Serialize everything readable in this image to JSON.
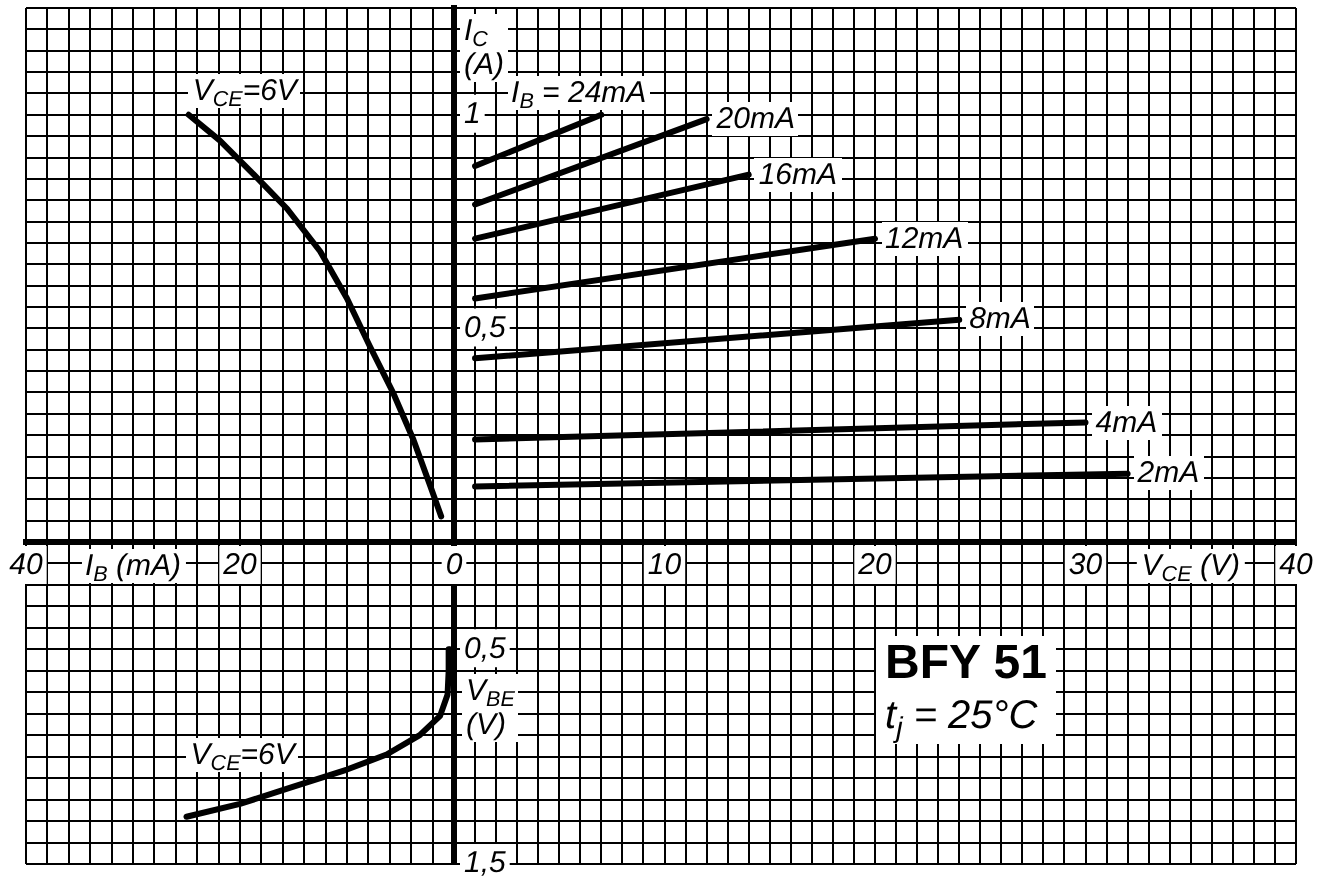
{
  "chart_data": [
    {
      "type": "line",
      "xlabel": "I$_{B}$ (mA)",
      "xlim": [
        40,
        0
      ],
      "xticks": [
        {
          "value": 2,
          "label": null
        },
        {
          "value": 4,
          "label": null
        },
        {
          "value": 6,
          "label": null
        },
        {
          "value": 8,
          "label": null
        },
        {
          "value": 10,
          "label": null
        },
        {
          "value": 12,
          "label": null
        },
        {
          "value": 14,
          "label": null
        },
        {
          "value": 16,
          "label": null
        },
        {
          "value": 18,
          "label": null
        },
        20,
        {
          "value": 22,
          "label": null
        },
        {
          "value": 24,
          "label": null
        },
        {
          "value": 26,
          "label": null
        },
        {
          "value": 28,
          "label": null
        },
        {
          "value": 30,
          "label": null
        },
        {
          "value": 32,
          "label": null
        },
        {
          "value": 34,
          "label": null
        },
        {
          "value": 36,
          "label": null
        },
        {
          "value": 38,
          "label": null
        },
        40
      ],
      "ylim": [
        0,
        1.25
      ],
      "yticks": [
        0.05,
        0.1,
        0.15,
        0.2,
        0.25,
        0.3,
        0.35,
        0.4,
        0.45,
        0.5,
        0.55,
        0.6,
        0.65,
        0.7,
        0.75,
        0.8,
        0.85,
        0.9,
        0.95,
        1,
        1.05,
        1.1,
        1.15,
        1.2,
        1.25
      ],
      "tick_labels": "x",
      "grid": true,
      "series": [
        {
          "name": "V$_{CE}$=6V",
          "color": "#000000",
          "x": [
            1.2,
            2.2,
            3.8,
            5.7,
            7.9,
            10,
            12.5,
            15.6,
            18.7,
            21.9,
            24.8
          ],
          "values": [
            0.06,
            0.13,
            0.24,
            0.35,
            0.46,
            0.57,
            0.68,
            0.78,
            0.86,
            0.94,
            1.0
          ]
        }
      ]
    },
    {
      "type": "line",
      "xlabel": "V$_{CE}$ (V)",
      "ylabel": "I$_{C}$ (A)",
      "xlim": [
        0,
        40
      ],
      "xticks": [
        0,
        {
          "value": 1,
          "label": null
        },
        {
          "value": 2,
          "label": null
        },
        {
          "value": 3,
          "label": null
        },
        {
          "value": 4,
          "label": null
        },
        {
          "value": 5,
          "label": null
        },
        {
          "value": 6,
          "label": null
        },
        {
          "value": 7,
          "label": null
        },
        {
          "value": 8,
          "label": null
        },
        {
          "value": 9,
          "label": null
        },
        10,
        {
          "value": 11,
          "label": null
        },
        {
          "value": 12,
          "label": null
        },
        {
          "value": 13,
          "label": null
        },
        {
          "value": 14,
          "label": null
        },
        {
          "value": 15,
          "label": null
        },
        {
          "value": 16,
          "label": null
        },
        {
          "value": 17,
          "label": null
        },
        {
          "value": 18,
          "label": null
        },
        {
          "value": 19,
          "label": null
        },
        20,
        {
          "value": 21,
          "label": null
        },
        {
          "value": 22,
          "label": null
        },
        {
          "value": 23,
          "label": null
        },
        {
          "value": 24,
          "label": null
        },
        {
          "value": 25,
          "label": null
        },
        {
          "value": 26,
          "label": null
        },
        {
          "value": 27,
          "label": null
        },
        {
          "value": 28,
          "label": null
        },
        {
          "value": 29,
          "label": null
        },
        30,
        {
          "value": 31,
          "label": null
        },
        {
          "value": 32,
          "label": null
        },
        {
          "value": 33,
          "label": null
        },
        {
          "value": 34,
          "label": null
        },
        {
          "value": 35,
          "label": null
        },
        {
          "value": 36,
          "label": null
        },
        {
          "value": 37,
          "label": null
        },
        {
          "value": 38,
          "label": null
        },
        {
          "value": 39,
          "label": null
        },
        40
      ],
      "ylim": [
        0,
        1.25
      ],
      "yticks": [
        {
          "value": 0.05,
          "label": null
        },
        {
          "value": 0.1,
          "label": null
        },
        {
          "value": 0.15,
          "label": null
        },
        {
          "value": 0.2,
          "label": null
        },
        {
          "value": 0.25,
          "label": null
        },
        {
          "value": 0.3,
          "label": null
        },
        {
          "value": 0.35,
          "label": null
        },
        {
          "value": 0.4,
          "label": null
        },
        {
          "value": 0.45,
          "label": null
        },
        {
          "value": 0.5,
          "label": "0,5"
        },
        {
          "value": 0.55,
          "label": null
        },
        {
          "value": 0.6,
          "label": null
        },
        {
          "value": 0.65,
          "label": null
        },
        {
          "value": 0.7,
          "label": null
        },
        {
          "value": 0.75,
          "label": null
        },
        {
          "value": 0.8,
          "label": null
        },
        {
          "value": 0.85,
          "label": null
        },
        {
          "value": 0.9,
          "label": null
        },
        {
          "value": 0.95,
          "label": null
        },
        1,
        {
          "value": 1.05,
          "label": null
        },
        {
          "value": 1.1,
          "label": null
        },
        {
          "value": 1.15,
          "label": null
        },
        {
          "value": 1.2,
          "label": null
        },
        {
          "value": 1.25,
          "label": null
        }
      ],
      "grid": true,
      "series": [
        {
          "name": "I$_{B}$ = 24mA",
          "color": "#000000",
          "x": [
            1,
            7
          ],
          "values": [
            0.88,
            1.0
          ]
        },
        {
          "name": "20mA",
          "color": "#000000",
          "x": [
            1,
            12
          ],
          "values": [
            0.79,
            0.99
          ]
        },
        {
          "name": "16mA",
          "color": "#000000",
          "x": [
            1,
            14
          ],
          "values": [
            0.71,
            0.86
          ]
        },
        {
          "name": "12mA",
          "color": "#000000",
          "x": [
            1,
            20
          ],
          "values": [
            0.57,
            0.71
          ]
        },
        {
          "name": "8mA",
          "color": "#000000",
          "x": [
            1,
            24
          ],
          "values": [
            0.43,
            0.52
          ]
        },
        {
          "name": "4mA",
          "color": "#000000",
          "x": [
            1,
            30
          ],
          "values": [
            0.24,
            0.28
          ]
        },
        {
          "name": "2mA",
          "color": "#000000",
          "x": [
            1,
            32
          ],
          "values": [
            0.13,
            0.16
          ]
        }
      ]
    },
    {
      "type": "line",
      "ylabel": "V$_{BE}$ (V)",
      "xlim": [
        40,
        0
      ],
      "xticks": [
        2,
        4,
        6,
        8,
        10,
        12,
        14,
        16,
        18,
        20,
        22,
        24,
        26,
        28,
        30,
        32,
        34,
        36,
        38,
        40
      ],
      "ylim": [
        1.5,
        0
      ],
      "yticks": [
        {
          "value": 0.1,
          "label": null
        },
        {
          "value": 0.2,
          "label": null
        },
        {
          "value": 0.3,
          "label": null
        },
        {
          "value": 0.4,
          "label": null
        },
        {
          "value": 0.5,
          "label": "0,5"
        },
        {
          "value": 0.6,
          "label": null
        },
        {
          "value": 0.7,
          "label": null
        },
        {
          "value": 0.8,
          "label": null
        },
        {
          "value": 0.9,
          "label": null
        },
        {
          "value": 1,
          "label": null
        },
        {
          "value": 1.1,
          "label": null
        },
        {
          "value": 1.2,
          "label": null
        },
        {
          "value": 1.3,
          "label": null
        },
        {
          "value": 1.4,
          "label": null
        },
        {
          "value": 1.5,
          "label": "1,5"
        }
      ],
      "tick_labels": "y",
      "grid": true,
      "series": [
        {
          "name": "V$_{CE}$=6V",
          "color": "#000000",
          "x": [
            0.4,
            0.5,
            0.6,
            1.3,
            3.2,
            6.3,
            10,
            15,
            20,
            25
          ],
          "values": [
            0.5,
            0.6,
            0.71,
            0.81,
            0.9,
            0.99,
            1.06,
            1.14,
            1.22,
            1.28
          ]
        }
      ]
    },
    {
      "type": "line",
      "xlim": [
        0,
        40
      ],
      "xticks": [
        1,
        2,
        3,
        4,
        5,
        6,
        7,
        8,
        9,
        10,
        11,
        12,
        13,
        14,
        15,
        16,
        17,
        18,
        19,
        20,
        21,
        22,
        23,
        24,
        25,
        26,
        27,
        28,
        29,
        30,
        31,
        32,
        33,
        34,
        35,
        36,
        37,
        38,
        39,
        40
      ],
      "ylim": [
        1.5,
        0
      ],
      "yticks": [
        0.1,
        0.2,
        0.3,
        0.4,
        0.5,
        0.6,
        0.7,
        0.8,
        0.9,
        1,
        1.1,
        1.2,
        1.3,
        1.4,
        1.5
      ],
      "tick_labels": false,
      "grid": true,
      "annotations": [
        "BFY 51",
        "t$_{j}$ = 25°C"
      ]
    }
  ]
}
